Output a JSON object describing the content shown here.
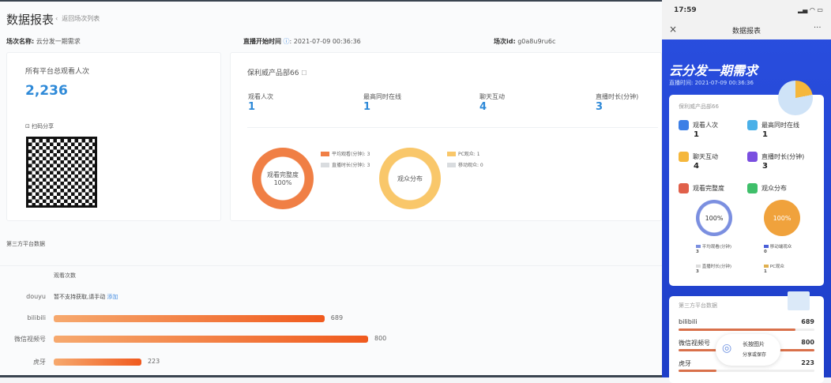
{
  "header": {
    "title": "数据报表",
    "back_label": "返回场次列表",
    "back_icon": "chevron-left-icon"
  },
  "info": {
    "name_label": "场次名称:",
    "name_value": "云分发一期需求",
    "start_label": "直播开始时间",
    "start_value": "2021-07-09 00:36:36",
    "id_label": "场次id:",
    "id_value": "g0a8u9ru6c"
  },
  "total": {
    "label": "所有平台总观看人次",
    "value": "2,236",
    "share_label": "扫码分享"
  },
  "dept": {
    "title": "保利威产品部66",
    "stats": [
      {
        "label": "观看人次",
        "value": "1"
      },
      {
        "label": "最高同时在线",
        "value": "1"
      },
      {
        "label": "聊天互动",
        "value": "4"
      },
      {
        "label": "直播时长(分钟)",
        "value": "3"
      }
    ],
    "completeness": {
      "center": "观看完整度",
      "percent": "100%",
      "legend": [
        "平均观看(分钟): 3",
        "直播时长(分钟): 3"
      ],
      "colors": [
        "#f07f45",
        "#d9dcdf"
      ]
    },
    "audience": {
      "center": "观众分布",
      "legend": [
        "PC观众: 1",
        "移动观众: 0"
      ],
      "colors": [
        "#f9c76a",
        "#d9dcdf"
      ]
    }
  },
  "third_party": {
    "title": "第三方平台数据",
    "column": "观看次数",
    "douyu": {
      "name": "douyu",
      "text": "暂不支持获取,请手动",
      "link": "添加"
    }
  },
  "chart_data": {
    "type": "bar",
    "orientation": "horizontal",
    "categories": [
      "bilibili",
      "微信视频号",
      "虎牙"
    ],
    "values": [
      689,
      800,
      223
    ],
    "xlabel": "观看次数",
    "xlim": [
      0,
      800
    ]
  },
  "phone": {
    "time": "17:59",
    "title": "数据报表",
    "hero_title": "云分发一期需求",
    "hero_time": "直播时间: 2021-07-09 00:36:36",
    "card_title": "保利威产品部66",
    "stats": [
      {
        "label": "观看人次",
        "value": "1",
        "color": "#3d7fe6"
      },
      {
        "label": "最高同时在线",
        "value": "1",
        "color": "#4ab0e8"
      },
      {
        "label": "聊天互动",
        "value": "4",
        "color": "#f5b73c"
      },
      {
        "label": "直播时长(分钟)",
        "value": "3",
        "color": "#7a4fe0"
      }
    ],
    "completeness_label": "观看完整度",
    "audience_label": "观众分布",
    "completeness_pct": "100%",
    "audience_pct": "100%",
    "legend": [
      {
        "label": "平均观看(分钟)",
        "value": "3"
      },
      {
        "label": "移动端观众",
        "value": "0"
      },
      {
        "label": "直播时长(分钟)",
        "value": "3"
      },
      {
        "label": "PC观众",
        "value": "1"
      }
    ],
    "third_title": "第三方平台数据",
    "platforms": [
      {
        "name": "bilibili",
        "value": "689"
      },
      {
        "name": "微信视频号",
        "value": "800"
      },
      {
        "name": "虎牙",
        "value": "223"
      }
    ],
    "overlay": {
      "line1": "长按图片",
      "line2": "分享或保存"
    }
  }
}
